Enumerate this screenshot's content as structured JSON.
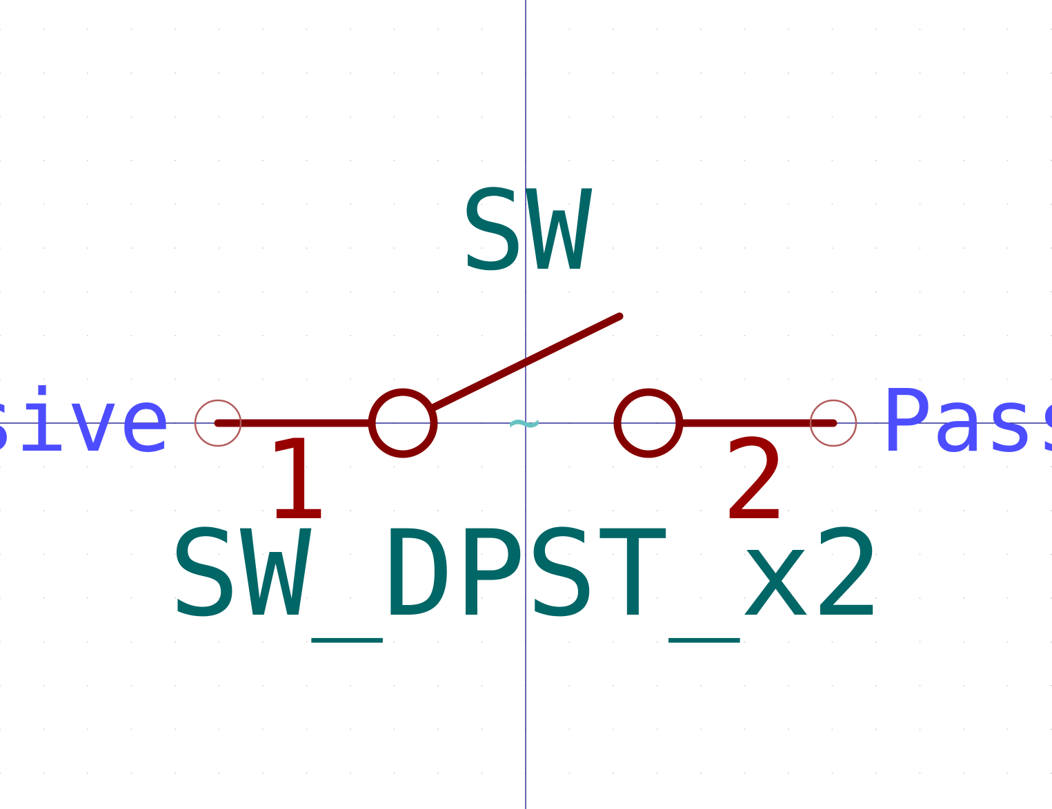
{
  "symbol": {
    "reference": "SW",
    "value": "SW_DPST_x2",
    "hidden_field_marker": "~"
  },
  "pins": [
    {
      "number": "1",
      "electrical_type": "Passive"
    },
    {
      "number": "2",
      "electrical_type": "Passive"
    }
  ],
  "colors": {
    "background": "#ffffff",
    "body_outline": "#840000",
    "pin_number": "#990000",
    "pin_type": "#4d4dff",
    "field_text": "#006666",
    "hidden_field": "#66c2c2",
    "anchor_axes": "#000080",
    "pin_endpoint": "#b25a5a",
    "grid": "#dcdcdc"
  }
}
